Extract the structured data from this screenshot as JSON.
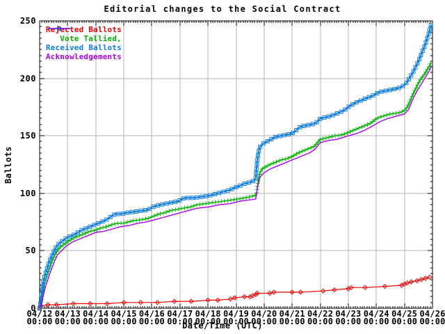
{
  "chart_data": {
    "type": "line",
    "title": "Editorial changes to the Social Contract",
    "xlabel": "Date/Time (UTC)",
    "ylabel": "Ballots",
    "ylim": [
      0,
      250
    ],
    "xlim_days": [
      0,
      14
    ],
    "grid": true,
    "legend_position": "top-left",
    "y_ticks": [
      0,
      50,
      100,
      150,
      200,
      250
    ],
    "x_ticks": [
      {
        "date": "04/12",
        "time": "00:00"
      },
      {
        "date": "04/13",
        "time": "00:00"
      },
      {
        "date": "04/14",
        "time": "00:00"
      },
      {
        "date": "04/15",
        "time": "00:00"
      },
      {
        "date": "04/16",
        "time": "00:00"
      },
      {
        "date": "04/17",
        "time": "00:00"
      },
      {
        "date": "04/18",
        "time": "00:00"
      },
      {
        "date": "04/19",
        "time": "00:00"
      },
      {
        "date": "04/20",
        "time": "00:00"
      },
      {
        "date": "04/21",
        "time": "00:00"
      },
      {
        "date": "04/22",
        "time": "00:00"
      },
      {
        "date": "04/23",
        "time": "00:00"
      },
      {
        "date": "04/24",
        "time": "00:00"
      },
      {
        "date": "04/25",
        "time": "00:00"
      },
      {
        "date": "04/26",
        "time": "00:00"
      }
    ],
    "colors": {
      "background": "#ffffff",
      "grid": "#b3b3b3",
      "axis": "#000000"
    },
    "series": [
      {
        "name": "Rejected Ballots",
        "color": "#ee0000",
        "marker": "diamond",
        "markers_at": "points",
        "width": 1.2,
        "points": [
          [
            0,
            0
          ],
          [
            0.05,
            2
          ],
          [
            0.3,
            3
          ],
          [
            0.6,
            3
          ],
          [
            1.2,
            4
          ],
          [
            1.8,
            4
          ],
          [
            2.4,
            4
          ],
          [
            3.0,
            5
          ],
          [
            3.6,
            5
          ],
          [
            4.2,
            5
          ],
          [
            4.8,
            6
          ],
          [
            5.4,
            6
          ],
          [
            6.0,
            7
          ],
          [
            6.35,
            7
          ],
          [
            6.8,
            8
          ],
          [
            6.95,
            9
          ],
          [
            7.3,
            10
          ],
          [
            7.5,
            10
          ],
          [
            7.6,
            11
          ],
          [
            7.7,
            12
          ],
          [
            7.75,
            13
          ],
          [
            8.2,
            13
          ],
          [
            8.35,
            14
          ],
          [
            9.0,
            14
          ],
          [
            9.3,
            14
          ],
          [
            10.1,
            15
          ],
          [
            10.5,
            16
          ],
          [
            11.0,
            17
          ],
          [
            11.1,
            18
          ],
          [
            11.6,
            18
          ],
          [
            12.3,
            19
          ],
          [
            12.9,
            20
          ],
          [
            13.0,
            21
          ],
          [
            13.1,
            22
          ],
          [
            13.25,
            23
          ],
          [
            13.45,
            24
          ],
          [
            13.6,
            25
          ],
          [
            13.75,
            26
          ],
          [
            13.9,
            27
          ]
        ]
      },
      {
        "name": "Vote Tallied,",
        "color": "#00b400",
        "marker": "plus",
        "markers_at": "dense",
        "width": 1.3,
        "points": [
          [
            0,
            0
          ],
          [
            0.04,
            4
          ],
          [
            0.08,
            9
          ],
          [
            0.12,
            15
          ],
          [
            0.16,
            20
          ],
          [
            0.22,
            25
          ],
          [
            0.3,
            31
          ],
          [
            0.38,
            37
          ],
          [
            0.46,
            42
          ],
          [
            0.55,
            47
          ],
          [
            0.65,
            51
          ],
          [
            0.78,
            54
          ],
          [
            0.9,
            56
          ],
          [
            1.0,
            58
          ],
          [
            1.2,
            61
          ],
          [
            1.4,
            63
          ],
          [
            1.6,
            65
          ],
          [
            1.8,
            67
          ],
          [
            2.0,
            68
          ],
          [
            2.2,
            70
          ],
          [
            2.4,
            71
          ],
          [
            2.6,
            73
          ],
          [
            2.8,
            74
          ],
          [
            3.0,
            74
          ],
          [
            3.3,
            76
          ],
          [
            3.6,
            77
          ],
          [
            3.85,
            78
          ],
          [
            4.05,
            80
          ],
          [
            4.25,
            82
          ],
          [
            4.45,
            83
          ],
          [
            4.65,
            85
          ],
          [
            4.9,
            86
          ],
          [
            5.1,
            87
          ],
          [
            5.35,
            88
          ],
          [
            5.6,
            90
          ],
          [
            5.9,
            91
          ],
          [
            6.2,
            92
          ],
          [
            6.5,
            93
          ],
          [
            6.8,
            94
          ],
          [
            7.05,
            95
          ],
          [
            7.3,
            96
          ],
          [
            7.5,
            97
          ],
          [
            7.65,
            98
          ],
          [
            7.73,
            99
          ],
          [
            7.78,
            110
          ],
          [
            7.84,
            117
          ],
          [
            7.92,
            121
          ],
          [
            8.05,
            123
          ],
          [
            8.2,
            125
          ],
          [
            8.4,
            127
          ],
          [
            8.6,
            129
          ],
          [
            8.8,
            130
          ],
          [
            9.0,
            132
          ],
          [
            9.2,
            135
          ],
          [
            9.4,
            137
          ],
          [
            9.6,
            139
          ],
          [
            9.8,
            141
          ],
          [
            9.9,
            144
          ],
          [
            10.0,
            147
          ],
          [
            10.2,
            148
          ],
          [
            10.5,
            150
          ],
          [
            10.8,
            151
          ],
          [
            11.0,
            153
          ],
          [
            11.2,
            155
          ],
          [
            11.4,
            157
          ],
          [
            11.6,
            159
          ],
          [
            11.8,
            161
          ],
          [
            12.0,
            165
          ],
          [
            12.2,
            167
          ],
          [
            12.5,
            169
          ],
          [
            12.8,
            170
          ],
          [
            13.0,
            172
          ],
          [
            13.1,
            175
          ],
          [
            13.2,
            180
          ],
          [
            13.3,
            186
          ],
          [
            13.4,
            191
          ],
          [
            13.5,
            196
          ],
          [
            13.6,
            200
          ],
          [
            13.7,
            203
          ],
          [
            13.8,
            207
          ],
          [
            13.9,
            211
          ],
          [
            13.95,
            214
          ]
        ]
      },
      {
        "name": "Received Ballots",
        "color": "#0e7ce0",
        "marker": "square",
        "markers_at": "dense",
        "width": 2,
        "points": [
          [
            0,
            0
          ],
          [
            0.03,
            5
          ],
          [
            0.07,
            12
          ],
          [
            0.1,
            18
          ],
          [
            0.13,
            23
          ],
          [
            0.17,
            27
          ],
          [
            0.22,
            31
          ],
          [
            0.28,
            36
          ],
          [
            0.35,
            41
          ],
          [
            0.42,
            45
          ],
          [
            0.5,
            49
          ],
          [
            0.58,
            53
          ],
          [
            0.68,
            56
          ],
          [
            0.78,
            58
          ],
          [
            0.9,
            60
          ],
          [
            1.0,
            62
          ],
          [
            1.15,
            63
          ],
          [
            1.3,
            65
          ],
          [
            1.5,
            68
          ],
          [
            1.7,
            70
          ],
          [
            1.9,
            72
          ],
          [
            2.1,
            74
          ],
          [
            2.3,
            76
          ],
          [
            2.45,
            78
          ],
          [
            2.55,
            80
          ],
          [
            2.7,
            82
          ],
          [
            2.9,
            82
          ],
          [
            3.1,
            83
          ],
          [
            3.4,
            84
          ],
          [
            3.7,
            85
          ],
          [
            3.9,
            86
          ],
          [
            4.0,
            88
          ],
          [
            4.15,
            89
          ],
          [
            4.3,
            90
          ],
          [
            4.5,
            91
          ],
          [
            4.7,
            92
          ],
          [
            4.95,
            93
          ],
          [
            5.05,
            95
          ],
          [
            5.2,
            96
          ],
          [
            5.5,
            96
          ],
          [
            5.8,
            97
          ],
          [
            6.05,
            98
          ],
          [
            6.2,
            99
          ],
          [
            6.35,
            100
          ],
          [
            6.5,
            101
          ],
          [
            6.65,
            102
          ],
          [
            6.8,
            103
          ],
          [
            6.95,
            105
          ],
          [
            7.1,
            106
          ],
          [
            7.25,
            108
          ],
          [
            7.4,
            109
          ],
          [
            7.55,
            110
          ],
          [
            7.65,
            111
          ],
          [
            7.7,
            113
          ],
          [
            7.74,
            125
          ],
          [
            7.78,
            133
          ],
          [
            7.84,
            140
          ],
          [
            7.95,
            143
          ],
          [
            8.1,
            145
          ],
          [
            8.25,
            147
          ],
          [
            8.4,
            149
          ],
          [
            8.6,
            150
          ],
          [
            8.8,
            151
          ],
          [
            9.0,
            152
          ],
          [
            9.15,
            155
          ],
          [
            9.3,
            158
          ],
          [
            9.5,
            159
          ],
          [
            9.7,
            160
          ],
          [
            9.85,
            161
          ],
          [
            10.0,
            165
          ],
          [
            10.15,
            166
          ],
          [
            10.35,
            167
          ],
          [
            10.55,
            169
          ],
          [
            10.75,
            171
          ],
          [
            10.9,
            173
          ],
          [
            11.05,
            176
          ],
          [
            11.2,
            178
          ],
          [
            11.35,
            180
          ],
          [
            11.5,
            181
          ],
          [
            11.65,
            183
          ],
          [
            11.8,
            184
          ],
          [
            11.95,
            186
          ],
          [
            12.1,
            188
          ],
          [
            12.3,
            189
          ],
          [
            12.5,
            190
          ],
          [
            12.7,
            191
          ],
          [
            12.85,
            192
          ],
          [
            13.0,
            194
          ],
          [
            13.1,
            197
          ],
          [
            13.2,
            201
          ],
          [
            13.3,
            205
          ],
          [
            13.4,
            210
          ],
          [
            13.5,
            215
          ],
          [
            13.6,
            221
          ],
          [
            13.65,
            224
          ],
          [
            13.72,
            228
          ],
          [
            13.8,
            234
          ],
          [
            13.88,
            240
          ],
          [
            13.95,
            247
          ]
        ]
      },
      {
        "name": "Acknowledgements",
        "color": "#aa00ee",
        "marker": "none",
        "markers_at": "none",
        "width": 1.4,
        "points": [
          [
            0,
            0
          ],
          [
            0.05,
            3
          ],
          [
            0.1,
            8
          ],
          [
            0.15,
            13
          ],
          [
            0.2,
            18
          ],
          [
            0.28,
            24
          ],
          [
            0.36,
            30
          ],
          [
            0.45,
            36
          ],
          [
            0.55,
            42
          ],
          [
            0.65,
            47
          ],
          [
            0.78,
            50
          ],
          [
            0.9,
            53
          ],
          [
            1.0,
            55
          ],
          [
            1.2,
            58
          ],
          [
            1.4,
            60
          ],
          [
            1.6,
            62
          ],
          [
            1.8,
            64
          ],
          [
            2.0,
            66
          ],
          [
            2.3,
            67
          ],
          [
            2.6,
            69
          ],
          [
            2.9,
            71
          ],
          [
            3.2,
            72
          ],
          [
            3.5,
            74
          ],
          [
            3.8,
            75
          ],
          [
            4.1,
            77
          ],
          [
            4.4,
            79
          ],
          [
            4.7,
            81
          ],
          [
            5.0,
            83
          ],
          [
            5.3,
            85
          ],
          [
            5.6,
            87
          ],
          [
            6.0,
            88
          ],
          [
            6.4,
            90
          ],
          [
            6.8,
            91
          ],
          [
            7.1,
            93
          ],
          [
            7.4,
            94
          ],
          [
            7.7,
            95
          ],
          [
            7.76,
            105
          ],
          [
            7.85,
            114
          ],
          [
            8.0,
            118
          ],
          [
            8.2,
            121
          ],
          [
            8.5,
            124
          ],
          [
            8.8,
            127
          ],
          [
            9.0,
            129
          ],
          [
            9.3,
            132
          ],
          [
            9.6,
            135
          ],
          [
            9.8,
            138
          ],
          [
            10.0,
            144
          ],
          [
            10.3,
            146
          ],
          [
            10.6,
            147
          ],
          [
            11.0,
            150
          ],
          [
            11.3,
            152
          ],
          [
            11.6,
            155
          ],
          [
            11.9,
            159
          ],
          [
            12.1,
            162
          ],
          [
            12.4,
            165
          ],
          [
            12.7,
            167
          ],
          [
            13.0,
            169
          ],
          [
            13.15,
            173
          ],
          [
            13.3,
            182
          ],
          [
            13.45,
            189
          ],
          [
            13.6,
            195
          ],
          [
            13.75,
            201
          ],
          [
            13.9,
            207
          ],
          [
            13.95,
            211
          ]
        ]
      }
    ]
  }
}
